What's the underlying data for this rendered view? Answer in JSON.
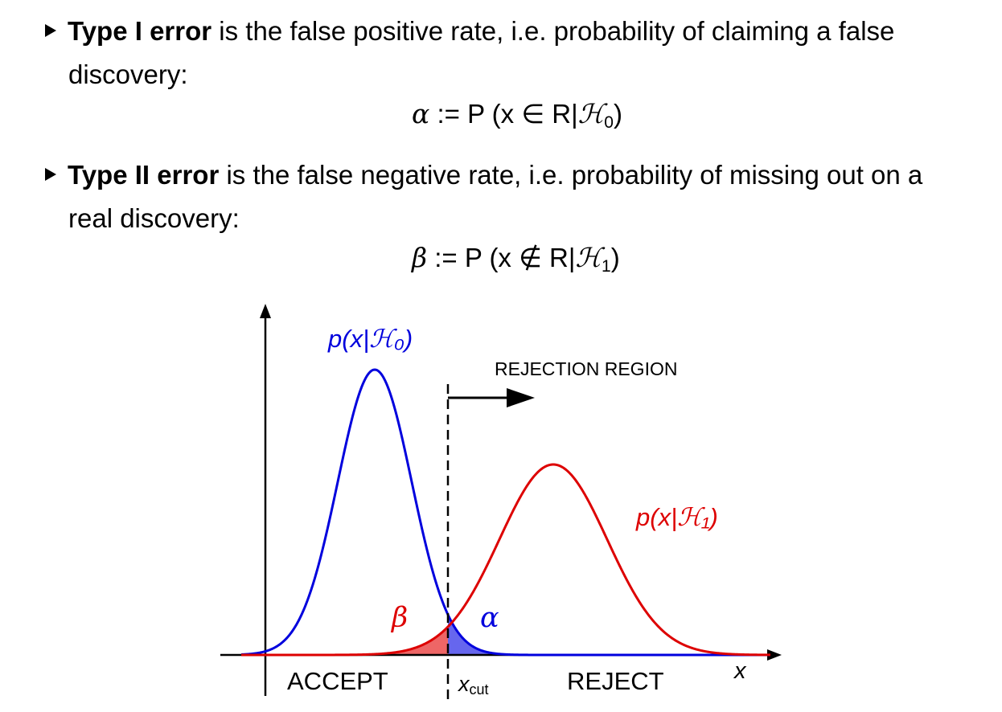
{
  "bullets": [
    {
      "term": "Type I error",
      "text_before": " is the false positive rate, i.e. probability of claiming a false",
      "text_after": "discovery:",
      "eq_lhs": "α",
      "eq_def": " := ",
      "eq_body": "P (x ∈ R|",
      "eq_cal": "ℋ",
      "eq_sub": "0",
      "eq_close": ")"
    },
    {
      "term": "Type II error",
      "text_before": " is the false negative rate, i.e. probability of missing out on a",
      "text_after": "real discovery:",
      "eq_lhs": "β",
      "eq_def": " := ",
      "eq_body": "P (x ∉ R|",
      "eq_cal": "ℋ",
      "eq_sub": "1",
      "eq_close": ")"
    }
  ],
  "diagram": {
    "h0_label": "p(x|ℋ₀)",
    "h1_label": "p(x|ℋ₁)",
    "rejection_region_label": "REJECTION REGION",
    "accept_label": "ACCEPT",
    "reject_label": "REJECT",
    "x_axis_label": "x",
    "xcut_main": "x",
    "xcut_sub": "cut",
    "alpha_label": "α",
    "beta_label": "β",
    "colors": {
      "h0": "#0000dd",
      "h1": "#dd0000",
      "alpha_fill": "#6666ee",
      "beta_fill": "#ee6666"
    }
  }
}
